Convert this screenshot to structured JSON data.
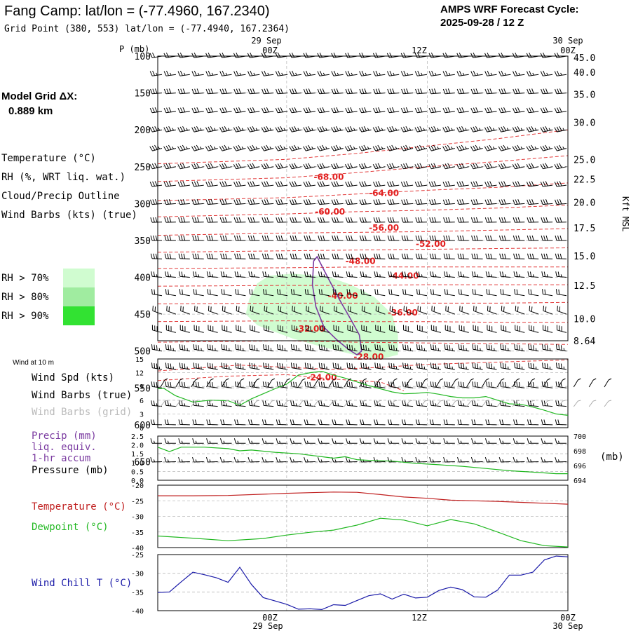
{
  "header": {
    "title": "Fang Camp:  lat/lon = (-77.4960, 167.2340)",
    "grid_point": "Grid Point (380, 553) lat/lon = (-77.4940, 167.2364)",
    "cycle_label": "AMPS WRF Forecast Cycle:",
    "cycle_value": "2025-09-28 / 12  Z",
    "model_grid_label": "Model Grid ΔX:",
    "model_grid_value": "0.889 km"
  },
  "time_axis": {
    "date_top_left": "29 Sep",
    "date_top_right": "30 Sep",
    "ticks": [
      "00Z",
      "12Z",
      "00Z"
    ],
    "tick_hours": [
      0,
      12,
      24
    ],
    "date_bottom_left": "29 Sep",
    "date_bottom_right": "30 Sep"
  },
  "legend": {
    "temperature": "Temperature (°C)",
    "rh": "RH (%, WRT liq. wat.)",
    "cloud": "Cloud/Precip Outline",
    "wind": "Wind Barbs (kts) (true)",
    "rh70": "RH > 70%",
    "rh80": "RH > 80%",
    "rh90": "RH > 90%",
    "color_temp": "#e23c3c",
    "color_rh": "#22b822",
    "color_cloud": "#7a3aa0",
    "color_rh70": "#d0fcd0",
    "color_rh80": "#a0eca0",
    "color_rh90": "#32e232"
  },
  "chart_data": [
    {
      "id": "sounding",
      "type": "heatmap",
      "title": "Pressure-time cross section",
      "ylabel": "P (mb)",
      "ylabel_right": "Kft MSL",
      "x_range_hours": [
        -11,
        24
      ],
      "pressure_ticks": [
        "100",
        "150",
        "200",
        "250",
        "300",
        "350",
        "400",
        "450",
        "500",
        "550",
        "600",
        "650"
      ],
      "pressure_values": [
        100,
        150,
        200,
        250,
        300,
        350,
        400,
        450,
        500,
        550,
        600,
        650
      ],
      "height_ticks": [
        "45.0",
        "40.0",
        "35.0",
        "30.0",
        "25.0",
        "22.5",
        "20.0",
        "17.5",
        "15.0",
        "12.5",
        "10.0",
        "8.64"
      ],
      "height_pressures": [
        102,
        122,
        152,
        190,
        240,
        267,
        298,
        333,
        371,
        411,
        456,
        486
      ],
      "temperature_labels": [
        {
          "text": "-68.00",
          "hour": 3.6,
          "p": 264
        },
        {
          "text": "-64.00",
          "hour": 8.3,
          "p": 286
        },
        {
          "text": "-60.00",
          "hour": 3.7,
          "p": 311
        },
        {
          "text": "-56.00",
          "hour": 8.3,
          "p": 333
        },
        {
          "text": "-52.00",
          "hour": 12.3,
          "p": 355
        },
        {
          "text": "-48.00",
          "hour": 6.3,
          "p": 378
        },
        {
          "text": "-44.00",
          "hour": 10.0,
          "p": 398
        },
        {
          "text": "-40.00",
          "hour": 4.8,
          "p": 425
        },
        {
          "text": "-36.00",
          "hour": 9.9,
          "p": 448
        },
        {
          "text": "-32.00",
          "hour": 2.0,
          "p": 470
        },
        {
          "text": "-28.00",
          "hour": 7.0,
          "p": 508
        },
        {
          "text": "-24.00",
          "hour": 3.0,
          "p": 536
        }
      ],
      "isotherms": [
        {
          "h": [
            -11,
            0,
            6,
            12,
            18,
            24
          ],
          "p": [
            246,
            240,
            232,
            222,
            212,
            200
          ]
        },
        {
          "h": [
            -11,
            0,
            6,
            12,
            18,
            24
          ],
          "p": [
            270,
            265,
            258,
            250,
            243,
            235
          ]
        },
        {
          "h": [
            -11,
            0,
            6,
            12,
            18,
            24
          ],
          "p": [
            296,
            292,
            287,
            282,
            278,
            272
          ]
        },
        {
          "h": [
            -11,
            0,
            6,
            12,
            18,
            24
          ],
          "p": [
            318,
            314,
            311,
            309,
            306,
            302
          ]
        },
        {
          "h": [
            -11,
            0,
            6,
            12,
            18,
            24
          ],
          "p": [
            343,
            340,
            339,
            338,
            336,
            334
          ]
        },
        {
          "h": [
            -11,
            0,
            6,
            12,
            18,
            24
          ],
          "p": [
            366,
            364,
            363,
            362,
            361,
            360
          ]
        },
        {
          "h": [
            -11,
            0,
            6,
            12,
            18,
            24
          ],
          "p": [
            388,
            387,
            386,
            386,
            386,
            386
          ]
        },
        {
          "h": [
            -11,
            0,
            6,
            12,
            18,
            24
          ],
          "p": [
            412,
            411,
            411,
            410,
            410,
            410
          ]
        },
        {
          "h": [
            -11,
            0,
            6,
            12,
            18,
            24
          ],
          "p": [
            436,
            435,
            435,
            435,
            435,
            434
          ]
        },
        {
          "h": [
            -11,
            0,
            6,
            12,
            18,
            24
          ],
          "p": [
            460,
            459,
            460,
            460,
            461,
            461
          ]
        },
        {
          "h": [
            -11,
            0,
            6,
            12,
            18,
            24
          ],
          "p": [
            488,
            486,
            488,
            489,
            490,
            491
          ]
        },
        {
          "h": [
            -11,
            -4,
            0,
            4,
            8,
            12,
            18,
            24
          ],
          "p": [
            527,
            519,
            522,
            525,
            522,
            518,
            515,
            512
          ]
        },
        {
          "h": [
            -11,
            -5,
            0,
            4,
            8,
            10
          ],
          "p": [
            540,
            534,
            532,
            538,
            542,
            554
          ]
        }
      ],
      "rh70_region": {
        "h": [
          -2.5,
          -1.5,
          0.5,
          3.5,
          5.5,
          7.5,
          9,
          9.5,
          9.5,
          8,
          6.5,
          4.5,
          2.5,
          0.5,
          -1,
          -2.5,
          -3.5,
          -3.2,
          -2.5
        ],
        "p": [
          408,
          398,
          395,
          399,
          410,
          427,
          450,
          478,
          505,
          511,
          508,
          500,
          492,
          483,
          474,
          465,
          450,
          430,
          408
        ]
      },
      "cloud_outline": {
        "h": [
          2.3,
          2.6,
          3.5,
          4.5,
          5.4,
          6.2,
          6.4,
          6.0,
          5.3,
          4.3,
          3.2,
          2.5,
          2.2,
          2.3
        ],
        "p": [
          378,
          372,
          400,
          430,
          455,
          478,
          500,
          505,
          498,
          485,
          468,
          440,
          410,
          378
        ]
      },
      "wind_level_pressures": [
        100,
        125,
        150,
        175,
        200,
        225,
        250,
        275,
        300,
        325,
        350,
        375,
        400,
        425,
        450,
        475,
        500,
        525,
        550,
        575,
        600,
        625,
        650
      ],
      "wind_level_speeds_kts": [
        20,
        25,
        30,
        30,
        35,
        35,
        30,
        30,
        30,
        30,
        30,
        30,
        25,
        20,
        20,
        30,
        35,
        35,
        30,
        25,
        20,
        15,
        15
      ],
      "wind_level_dirs_deg": [
        260,
        262,
        265,
        262,
        258,
        255,
        258,
        262,
        265,
        268,
        270,
        272,
        275,
        280,
        290,
        285,
        280,
        280,
        278,
        275,
        272,
        270,
        268
      ]
    },
    {
      "id": "wind10m",
      "type": "line",
      "title": "Wind at 10 m",
      "series_label": "Wind Spd (kts)",
      "barbs_true_label": "Wind Barbs (true)",
      "barbs_grid_label": "Wind Barbs (grid)",
      "y_ticks": [
        "15",
        "12",
        "9",
        "6",
        "3",
        "0"
      ],
      "ylim": [
        0,
        15
      ],
      "x": [
        -11,
        -10.5,
        -9.5,
        -8,
        -6.5,
        -5,
        -4,
        -3,
        -1,
        0,
        1,
        2,
        3,
        4,
        5,
        6,
        7,
        8,
        9,
        10,
        11,
        12,
        13,
        14,
        15,
        16,
        17,
        18,
        19,
        20,
        21,
        22,
        23,
        24
      ],
      "values": [
        8.5,
        8.6,
        7.0,
        5.6,
        6.0,
        5.9,
        4.9,
        6.3,
        8.5,
        9.5,
        11.5,
        12.0,
        12.3,
        11.5,
        10.8,
        10.0,
        9.2,
        8.5,
        7.8,
        7.4,
        7.5,
        7.7,
        7.3,
        6.8,
        6.5,
        6.5,
        6.8,
        6.0,
        5.2,
        5.1,
        4.5,
        3.8,
        3.0,
        2.7
      ],
      "series_color": "#22b822"
    },
    {
      "id": "precip_pressure",
      "type": "line",
      "precip_label": "Precip (mm)",
      "precip_label2": "liq. equiv.",
      "precip_label3": "1-hr accum",
      "pressure_label": "Pressure (mb)",
      "unit_right": "(mb)",
      "precip_ticks": [
        "2.5",
        "2.0",
        "1.5",
        "1.0",
        "0.5",
        "0.0"
      ],
      "pressure_ticks": [
        "700",
        "698",
        "696",
        "694"
      ],
      "pressure_range": [
        694,
        700
      ],
      "x": [
        -11,
        -10,
        -9,
        -7,
        -5,
        -4,
        -3,
        -1,
        1,
        3,
        4,
        5,
        6,
        7,
        9,
        11,
        13,
        15,
        17,
        19,
        21,
        23,
        24
      ],
      "pressure": [
        698.5,
        697.9,
        698.5,
        698.5,
        698.3,
        698.0,
        698.1,
        697.8,
        697.6,
        697.2,
        697.0,
        697.2,
        696.8,
        696.7,
        696.6,
        696.3,
        696.1,
        695.9,
        695.6,
        695.3,
        695.1,
        694.9,
        694.9
      ]
    },
    {
      "id": "temp_dew",
      "type": "line",
      "temperature_label": "Temperature (°C)",
      "dewpoint_label": "Dewpoint (°C)",
      "y_ticks": [
        "-20",
        "-25",
        "-30",
        "-35",
        "-40"
      ],
      "ylim": [
        -40,
        -20
      ],
      "x": [
        -11,
        -8,
        -5,
        -2,
        0,
        2,
        4,
        6,
        8,
        10,
        12,
        14,
        16,
        18,
        20,
        22,
        24
      ],
      "temperature": [
        -23.4,
        -23.4,
        -23.3,
        -22.9,
        -22.6,
        -22.4,
        -22.2,
        -22.3,
        -23.0,
        -23.8,
        -24.2,
        -24.8,
        -25.0,
        -25.2,
        -25.5,
        -25.8,
        -26.1
      ],
      "dewpoint": [
        -36.3,
        -37.0,
        -37.8,
        -37.1,
        -36.0,
        -35.1,
        -34.4,
        -32.8,
        -30.6,
        -31.2,
        -33.0,
        -31.0,
        -32.4,
        -35.0,
        -37.8,
        -39.4,
        -39.8
      ],
      "temp_color": "#c02020",
      "dew_color": "#22b822"
    },
    {
      "id": "windchill",
      "type": "line",
      "label": "Wind Chill T (°C)",
      "y_ticks": [
        "-25",
        "-30",
        "-35",
        "-40"
      ],
      "ylim": [
        -40,
        -25
      ],
      "x": [
        -11,
        -10,
        -9,
        -8,
        -7,
        -6,
        -5,
        -4,
        -3,
        -2,
        -1,
        0,
        1,
        2,
        3,
        4,
        5,
        6,
        7,
        8,
        9,
        10,
        11,
        12,
        13,
        14,
        15,
        16,
        17,
        18,
        19,
        20,
        21,
        22,
        23,
        24
      ],
      "values": [
        -35.1,
        -35.0,
        -32.3,
        -29.7,
        -30.4,
        -31.2,
        -32.4,
        -28.4,
        -33.0,
        -36.5,
        -37.4,
        -38.3,
        -39.6,
        -39.5,
        -39.7,
        -38.4,
        -38.6,
        -37.3,
        -36.0,
        -35.5,
        -36.9,
        -35.6,
        -36.6,
        -36.4,
        -34.6,
        -33.7,
        -34.4,
        -36.3,
        -36.4,
        -34.5,
        -30.5,
        -30.5,
        -29.7,
        -26.4,
        -25.4,
        -25.6
      ],
      "color": "#1a1aa8"
    }
  ]
}
